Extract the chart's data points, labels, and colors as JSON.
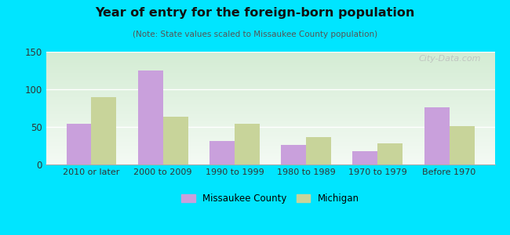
{
  "title": "Year of entry for the foreign-born population",
  "subtitle": "(Note: State values scaled to Missaukee County population)",
  "categories": [
    "2010 or later",
    "2000 to 2009",
    "1990 to 1999",
    "1980 to 1989",
    "1970 to 1979",
    "Before 1970"
  ],
  "missaukee": [
    54,
    125,
    31,
    26,
    18,
    76
  ],
  "michigan": [
    90,
    64,
    54,
    36,
    28,
    51
  ],
  "missaukee_color": "#c9a0dc",
  "michigan_color": "#c8d49a",
  "background_outer": "#00e5ff",
  "ylim": [
    0,
    150
  ],
  "yticks": [
    0,
    50,
    100,
    150
  ],
  "bar_width": 0.35,
  "legend_labels": [
    "Missaukee County",
    "Michigan"
  ],
  "watermark": "City-Data.com",
  "grid_color": "#dddddd",
  "inner_bg_top": "#d4ecd4",
  "inner_bg_bottom": "#f5fbf5"
}
